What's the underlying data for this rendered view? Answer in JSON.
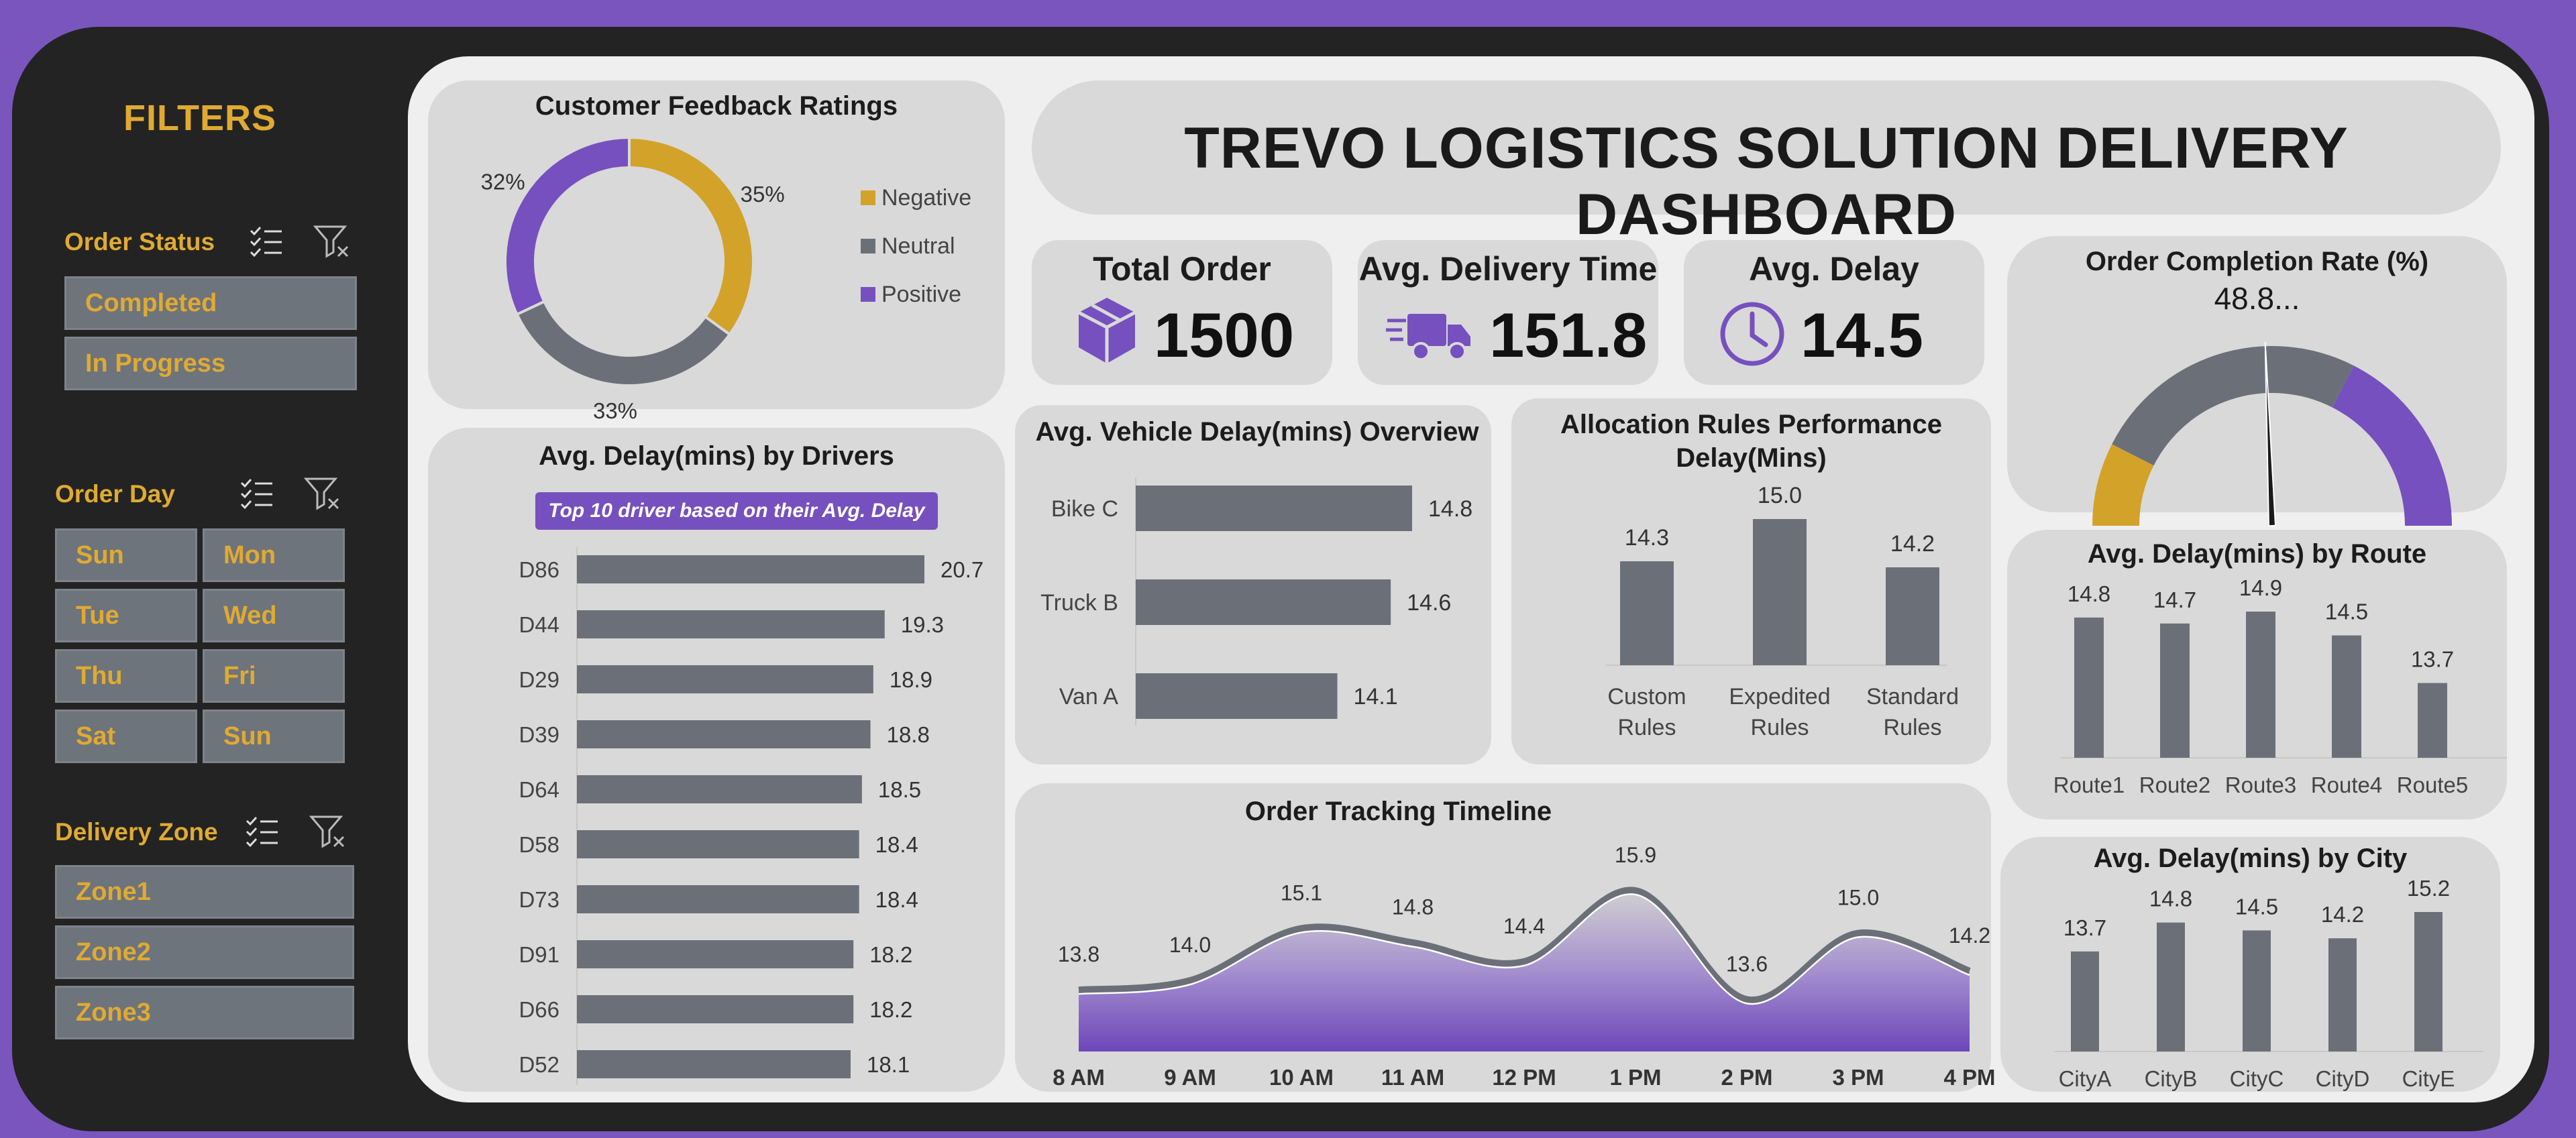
{
  "sidebar": {
    "title": "FILTERS",
    "order_status": {
      "label": "Order Status",
      "items": [
        "Completed",
        "In Progress"
      ]
    },
    "order_day": {
      "label": "Order Day",
      "items": [
        "Sun",
        "Mon",
        "Tue",
        "Wed",
        "Thu",
        "Fri",
        "Sat",
        "Sun"
      ]
    },
    "delivery_zone": {
      "label": "Delivery Zone",
      "items": [
        "Zone1",
        "Zone2",
        "Zone3"
      ]
    }
  },
  "header": {
    "title": "TREVO LOGISTICS SOLUTION DELIVERY DASHBOARD"
  },
  "kpis": {
    "total_order": {
      "label": "Total Order",
      "value": "1500"
    },
    "avg_delivery_time": {
      "label": "Avg. Delivery Time",
      "value": "151.8"
    },
    "avg_delay": {
      "label": "Avg. Delay",
      "value": "14.5"
    }
  },
  "colors": {
    "accent_purple": "#7650be",
    "gold": "#d3a229",
    "gray_bar": "#6b7078",
    "card_bg": "#d9d9d9",
    "sidebar_bg": "#232323"
  },
  "icons": {
    "box": "box-icon",
    "truck": "truck-icon",
    "clock": "clock-icon",
    "filter_multi": "multi-select-icon",
    "filter_clear": "clear-filter-icon"
  },
  "chart_data": [
    {
      "id": "feedback",
      "type": "pie",
      "title": "Customer Feedback Ratings",
      "categories": [
        "Negative",
        "Neutral",
        "Positive"
      ],
      "values": [
        35,
        33,
        32
      ],
      "labels": [
        "35%",
        "33%",
        "32%"
      ],
      "colors": [
        "#d3a229",
        "#6b7078",
        "#7650be"
      ]
    },
    {
      "id": "drivers",
      "type": "bar",
      "orientation": "horizontal",
      "title": "Avg.  Delay(mins) by Drivers",
      "subtitle": "Top 10 driver based on their Avg. Delay",
      "categories": [
        "D86",
        "D44",
        "D29",
        "D39",
        "D64",
        "D58",
        "D73",
        "D91",
        "D66",
        "D52"
      ],
      "values": [
        20.7,
        19.3,
        18.9,
        18.8,
        18.5,
        18.4,
        18.4,
        18.2,
        18.2,
        18.1
      ],
      "labels": [
        "20.7",
        "19.3",
        "18.9",
        "18.8",
        "18.5",
        "18.4",
        "18.4",
        "18.2",
        "18.2",
        "18.1"
      ],
      "xlim": [
        13.8,
        20.7
      ]
    },
    {
      "id": "vehicle",
      "type": "bar",
      "orientation": "horizontal",
      "title": "Avg. Vehicle Delay(mins) Overview",
      "categories": [
        "Bike C",
        "Truck B",
        "Van A"
      ],
      "values": [
        14.8,
        14.6,
        14.1
      ],
      "labels": [
        "14.8",
        "14.6",
        "14.1"
      ],
      "xlim": [
        13.5,
        14.8
      ]
    },
    {
      "id": "allocation",
      "type": "bar",
      "title": "Allocation Rules Performance Delay(Mins)",
      "title_lines": [
        "Allocation Rules Performance",
        "Delay(Mins)"
      ],
      "categories": [
        "Custom Rules",
        "Expedited Rules",
        "Standard Rules"
      ],
      "category_lines": [
        [
          "Custom",
          "Rules"
        ],
        [
          "Expedited",
          "Rules"
        ],
        [
          "Standard",
          "Rules"
        ]
      ],
      "values": [
        14.3,
        15.0,
        14.2
      ],
      "labels": [
        "14.3",
        "15.0",
        "14.2"
      ],
      "ylim": [
        13.6,
        15.0
      ]
    },
    {
      "id": "gauge",
      "type": "pie",
      "title": "Order Completion Rate (%)",
      "value_label": "48.8...",
      "value": 48.8,
      "segments": [
        15,
        50,
        35
      ],
      "colors": [
        "#d3a229",
        "#6b7078",
        "#7650be"
      ]
    },
    {
      "id": "route",
      "type": "bar",
      "title": "Avg. Delay(mins) by Route",
      "categories": [
        "Route1",
        "Route2",
        "Route3",
        "Route4",
        "Route5"
      ],
      "values": [
        14.8,
        14.7,
        14.9,
        14.5,
        13.7
      ],
      "labels": [
        "14.8",
        "14.7",
        "14.9",
        "14.5",
        "13.7"
      ],
      "ylim": [
        13.3,
        14.9
      ]
    },
    {
      "id": "timeline",
      "type": "area",
      "title": "Order Tracking Timeline",
      "categories": [
        "8 AM",
        "9 AM",
        "10 AM",
        "11 AM",
        "12 PM",
        "1 PM",
        "2 PM",
        "3 PM",
        "4 PM"
      ],
      "values": [
        13.8,
        14.0,
        15.1,
        14.8,
        14.4,
        15.9,
        13.6,
        15.0,
        14.2
      ],
      "labels": [
        "13.8",
        "14.0",
        "15.1",
        "14.8",
        "14.4",
        "15.9",
        "13.6",
        "15.0",
        "14.2"
      ],
      "ylim": [
        12.5,
        15.9
      ]
    },
    {
      "id": "city",
      "type": "bar",
      "title": "Avg. Delay(mins) by City",
      "categories": [
        "CityA",
        "CityB",
        "CityC",
        "CityD",
        "CityE"
      ],
      "values": [
        13.7,
        14.8,
        14.5,
        14.2,
        15.2
      ],
      "labels": [
        "13.7",
        "14.8",
        "14.5",
        "14.2",
        "15.2"
      ],
      "ylim": [
        12.7,
        15.2
      ]
    }
  ]
}
